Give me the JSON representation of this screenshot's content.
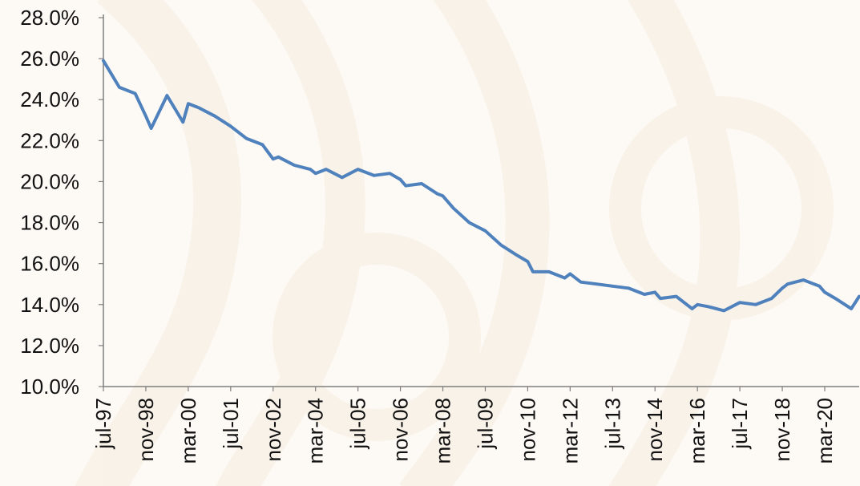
{
  "chart_data": {
    "type": "line",
    "title": "",
    "xlabel": "",
    "ylabel": "",
    "ylim": [
      10.0,
      28.0
    ],
    "y_tick_labels": [
      "10.0%",
      "12.0%",
      "14.0%",
      "16.0%",
      "18.0%",
      "20.0%",
      "22.0%",
      "24.0%",
      "26.0%",
      "28.0%"
    ],
    "x_tick_labels": [
      "jul-97",
      "nov-98",
      "mar-00",
      "jul-01",
      "nov-02",
      "mar-04",
      "jul-05",
      "nov-06",
      "mar-08",
      "jul-09",
      "nov-10",
      "mar-12",
      "jul-13",
      "nov-14",
      "mar-16",
      "jul-17",
      "nov-18",
      "mar-20"
    ],
    "x_range": [
      "jul-97",
      "apr-21"
    ],
    "grid": false,
    "legend": "none",
    "line_color": "#4f81bd",
    "series": [
      {
        "x": [
          "jul-97",
          "jan-98",
          "jul-98",
          "nov-98",
          "jan-99",
          "jul-99",
          "jan-00",
          "mar-00",
          "jul-00",
          "jan-01",
          "jul-01",
          "jan-02",
          "jul-02",
          "nov-02",
          "jan-03",
          "jul-03",
          "jan-04",
          "mar-04",
          "jul-04",
          "jan-05",
          "jul-05",
          "jan-06",
          "jul-06",
          "nov-06",
          "jan-07",
          "jul-07",
          "jan-08",
          "mar-08",
          "jul-08",
          "jan-09",
          "jul-09",
          "jan-10",
          "jul-10",
          "nov-10",
          "jan-11",
          "jul-11",
          "jan-12",
          "mar-12",
          "jul-12",
          "jan-13",
          "jul-13",
          "jan-14",
          "jul-14",
          "nov-14",
          "jan-15",
          "jul-15",
          "jan-16",
          "mar-16",
          "jul-16",
          "jan-17",
          "jul-17",
          "jan-18",
          "jul-18",
          "nov-18",
          "jan-19",
          "jul-19",
          "jan-20",
          "mar-20",
          "jul-20",
          "jan-21",
          "apr-21"
        ],
        "values": [
          25.9,
          24.6,
          24.3,
          23.2,
          22.6,
          24.2,
          22.9,
          23.8,
          23.6,
          23.2,
          22.7,
          22.1,
          21.8,
          21.1,
          21.2,
          20.8,
          20.6,
          20.4,
          20.6,
          20.2,
          20.6,
          20.3,
          20.4,
          20.1,
          19.8,
          19.9,
          19.4,
          19.3,
          18.7,
          18.0,
          17.6,
          16.9,
          16.4,
          16.1,
          15.6,
          15.6,
          15.3,
          15.5,
          15.1,
          15.0,
          14.9,
          14.8,
          14.5,
          14.6,
          14.3,
          14.4,
          13.8,
          14.0,
          13.9,
          13.7,
          14.1,
          14.0,
          14.3,
          14.8,
          15.0,
          15.2,
          14.9,
          14.6,
          14.3,
          13.8,
          14.4
        ]
      }
    ]
  }
}
